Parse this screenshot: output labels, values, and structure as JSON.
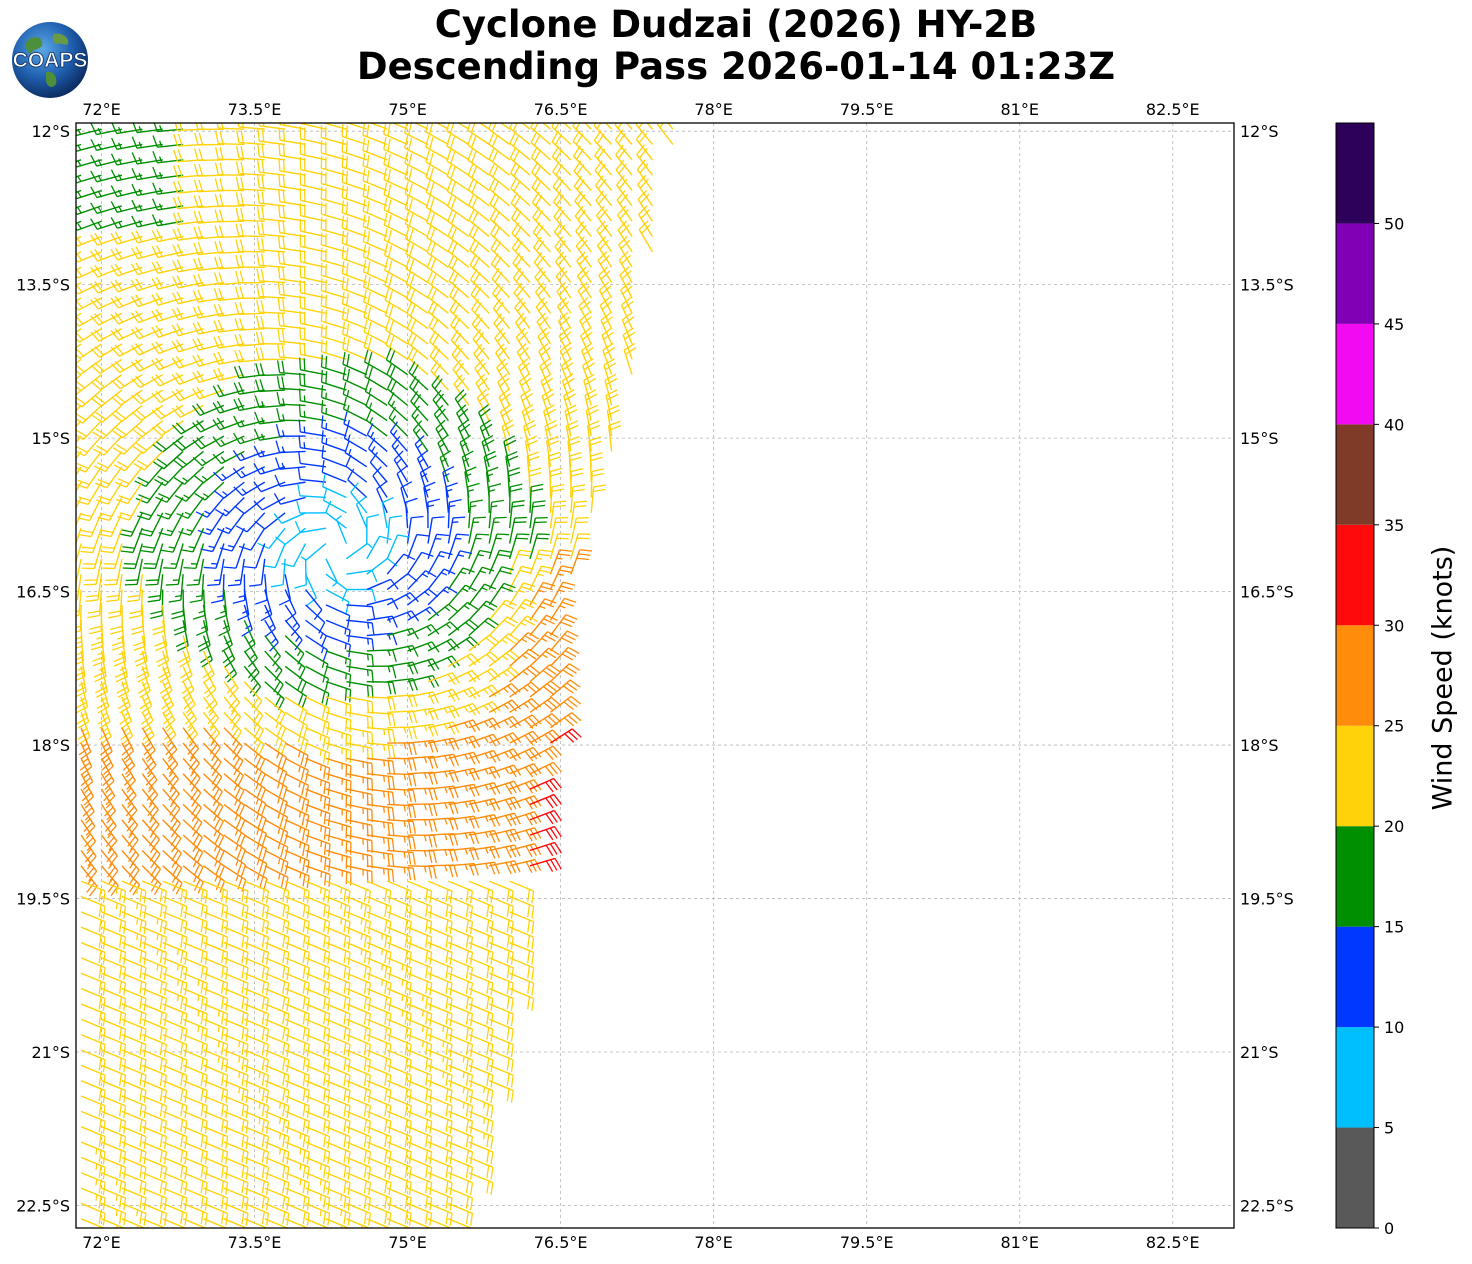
{
  "title": {
    "line1": "Cyclone Dudzai (2026) HY-2B",
    "line2": "Descending Pass 2026-01-14 01:23Z"
  },
  "logo": {
    "text": "COAPS",
    "icon": "globe-icon"
  },
  "map": {
    "projection": "equirectangular",
    "lon_range": [
      71.75,
      83.1
    ],
    "lat_range": [
      -22.72,
      -11.92
    ],
    "lon_ticks": [
      "72°E",
      "73.5°E",
      "75°E",
      "76.5°E",
      "78°E",
      "79.5°E",
      "81°E",
      "82.5°E"
    ],
    "lat_ticks": [
      "12°S",
      "13.5°S",
      "15°S",
      "16.5°S",
      "18°S",
      "19.5°S",
      "21°S",
      "22.5°S"
    ],
    "gridlines": true,
    "swath": {
      "lon_ranges_by_lat": [
        {
          "lat": -11.9,
          "lon_min": 71.75,
          "lon_max": 77.65
        },
        {
          "lat": -15.0,
          "lon_min": 71.75,
          "lon_max": 77.1
        },
        {
          "lat": -16.5,
          "lon_min": 71.75,
          "lon_max": 76.55
        },
        {
          "lat": -18.0,
          "lon_min": 71.75,
          "lon_max": 76.4
        },
        {
          "lat": -21.0,
          "lon_min": 71.75,
          "lon_max": 75.9
        },
        {
          "lat": -22.72,
          "lon_min": 71.75,
          "lon_max": 75.5
        }
      ]
    },
    "cyclone_center": {
      "lon": 74.3,
      "lat": -16.1
    },
    "wind_barbs": "HY-2B scatterometer wind barbs over the swath, colored by wind speed; cyclonic (clockwise, Southern Hemisphere) circulation with strongest winds (30-35 kt) near 76.4°E 17°S"
  },
  "colorbar": {
    "label": "Wind Speed (knots)",
    "tick_labels": [
      "0",
      "5",
      "10",
      "15",
      "20",
      "25",
      "30",
      "35",
      "40",
      "45",
      "50"
    ],
    "bins": [
      {
        "from": 0,
        "to": 5,
        "color": "#595959"
      },
      {
        "from": 5,
        "to": 10,
        "color": "#00bfff"
      },
      {
        "from": 10,
        "to": 15,
        "color": "#0038ff"
      },
      {
        "from": 15,
        "to": 20,
        "color": "#008f00"
      },
      {
        "from": 20,
        "to": 25,
        "color": "#ffd20a"
      },
      {
        "from": 25,
        "to": 30,
        "color": "#ff8c0a"
      },
      {
        "from": 30,
        "to": 35,
        "color": "#ff0a0a"
      },
      {
        "from": 35,
        "to": 40,
        "color": "#7f3a28"
      },
      {
        "from": 40,
        "to": 45,
        "color": "#f20af2"
      },
      {
        "from": 45,
        "to": 50,
        "color": "#8000b5"
      },
      {
        "from": 50,
        "to": 55,
        "color": "#2d005a"
      }
    ]
  }
}
